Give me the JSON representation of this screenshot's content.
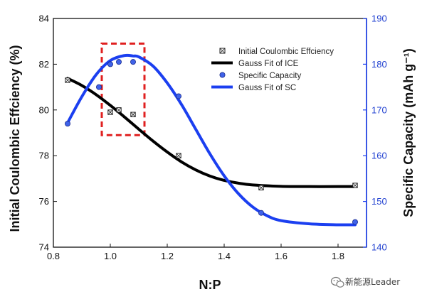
{
  "chart_data": {
    "type": "scatter",
    "xlabel": "N:P",
    "ylabel_left": "Initial Coulombic Effciency (%)",
    "ylabel_right": "Specific Capacity (mAh g⁻¹)",
    "xlim": [
      0.8,
      1.9
    ],
    "ylim_left": [
      74,
      84
    ],
    "ylim_right": [
      140,
      190
    ],
    "x_ticks": [
      "0.8",
      "1.0",
      "1.2",
      "1.4",
      "1.6",
      "1.8"
    ],
    "y_ticks_left": [
      "74",
      "76",
      "78",
      "80",
      "82",
      "84"
    ],
    "y_ticks_right": [
      "140",
      "150",
      "160",
      "170",
      "180",
      "190"
    ],
    "legend": [
      "Initial Coulombic Effciency",
      "Gauss Fit of ICE",
      "Specific Capacity",
      "Gauss Fit of SC"
    ],
    "series": [
      {
        "name": "Initial Coulombic Effciency",
        "axis": "left",
        "kind": "points",
        "color": "#222222",
        "x": [
          0.85,
          1.0,
          1.03,
          1.08,
          1.24,
          1.53,
          1.86
        ],
        "y": [
          81.3,
          79.9,
          80.0,
          79.8,
          78.0,
          76.6,
          76.7
        ]
      },
      {
        "name": "Gauss Fit of ICE",
        "axis": "left",
        "kind": "line",
        "color": "#000000",
        "x": [
          0.85,
          0.9,
          0.95,
          1.0,
          1.05,
          1.1,
          1.15,
          1.2,
          1.25,
          1.3,
          1.35,
          1.4,
          1.45,
          1.5,
          1.6,
          1.7,
          1.8,
          1.86
        ],
        "y": [
          81.38,
          81.07,
          80.67,
          80.2,
          79.69,
          79.16,
          78.64,
          78.16,
          77.73,
          77.38,
          77.11,
          76.92,
          76.8,
          76.72,
          76.66,
          76.65,
          76.65,
          76.65
        ]
      },
      {
        "name": "Specific Capacity",
        "axis": "right",
        "kind": "points",
        "color": "#3f62e8",
        "x": [
          0.85,
          0.96,
          1.0,
          1.03,
          1.08,
          1.24,
          1.53,
          1.86
        ],
        "y": [
          167,
          175,
          180,
          180.5,
          180.5,
          173,
          147.5,
          145.5
        ]
      },
      {
        "name": "Gauss Fit of SC",
        "axis": "right",
        "kind": "line",
        "color": "#1b3ff0",
        "x": [
          0.85,
          0.9,
          0.95,
          1.0,
          1.05,
          1.08,
          1.1,
          1.15,
          1.2,
          1.25,
          1.3,
          1.35,
          1.4,
          1.45,
          1.5,
          1.55,
          1.6,
          1.7,
          1.8,
          1.86
        ],
        "y": [
          167.2,
          172.9,
          177.7,
          180.8,
          181.9,
          181.8,
          181.6,
          179.6,
          175.9,
          171.2,
          165.8,
          160.4,
          155.6,
          151.7,
          148.8,
          146.9,
          145.8,
          145.1,
          144.9,
          144.9
        ]
      }
    ],
    "highlight_box": {
      "x_range": [
        0.97,
        1.12
      ],
      "y_range_left": [
        78.9,
        82.9
      ],
      "color": "#e02020",
      "style": "dashed"
    }
  },
  "watermark": {
    "text": "新能源Leader",
    "icon": "wechat-icon"
  }
}
